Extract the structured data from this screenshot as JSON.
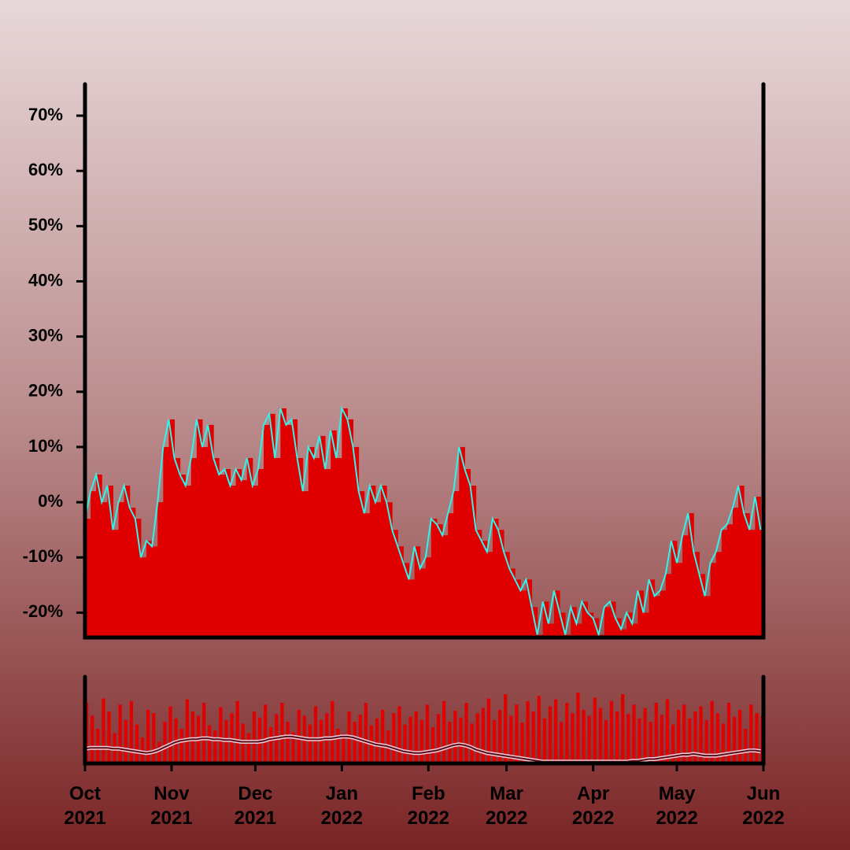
{
  "chart_data": [
    {
      "type": "area",
      "line_color": "#33f2ea",
      "color": "#e00000",
      "x": [
        0,
        2,
        4,
        6,
        8,
        10,
        12,
        14,
        16,
        18,
        20,
        22,
        24,
        26,
        28,
        30,
        32,
        34,
        36,
        38,
        40,
        42,
        44,
        46,
        48,
        50,
        52,
        54,
        56,
        58,
        60,
        62,
        64,
        66,
        68,
        70,
        72,
        74,
        76,
        78,
        80,
        82,
        84,
        86,
        88,
        90,
        92,
        94,
        96,
        98,
        100,
        102,
        104,
        106,
        108,
        110,
        112,
        114,
        116,
        118,
        120,
        122,
        124,
        126,
        128,
        130,
        132,
        134,
        136,
        138,
        140,
        142,
        144,
        146,
        148,
        150,
        152,
        154,
        156,
        158,
        160,
        162,
        164,
        166,
        168,
        170,
        172,
        174,
        176,
        178,
        180,
        182,
        184,
        186,
        188,
        190,
        192,
        194,
        196,
        198,
        200,
        202,
        204,
        206,
        208,
        210,
        212,
        214,
        216,
        218,
        220,
        222,
        224,
        226,
        228,
        230,
        232,
        234,
        236,
        238,
        240,
        242
      ],
      "values": [
        -3,
        2,
        5,
        0,
        3,
        -5,
        0,
        3,
        -1,
        -3,
        -10,
        -7,
        -8,
        0,
        10,
        15,
        8,
        5,
        3,
        8,
        15,
        10,
        14,
        8,
        5,
        6,
        3,
        6,
        4,
        8,
        3,
        6,
        14,
        16,
        8,
        17,
        14,
        15,
        8,
        2,
        10,
        8,
        12,
        6,
        13,
        8,
        17,
        15,
        10,
        2,
        -2,
        3,
        0,
        3,
        0,
        -5,
        -8,
        -11,
        -14,
        -8,
        -12,
        -10,
        -3,
        -4,
        -6,
        -2,
        2,
        10,
        6,
        3,
        -5,
        -7,
        -9,
        -3,
        -5,
        -9,
        -12,
        -14,
        -16,
        -14,
        -19,
        -24,
        -18,
        -22,
        -16,
        -20,
        -24,
        -19,
        -22,
        -18,
        -20,
        -21,
        -24,
        -19,
        -18,
        -21,
        -23,
        -20,
        -22,
        -16,
        -20,
        -14,
        -17,
        -16,
        -13,
        -7,
        -11,
        -6,
        -2,
        -9,
        -13,
        -17,
        -11,
        -9,
        -5,
        -4,
        -1,
        3,
        -2,
        -5,
        1,
        -5
      ],
      "xlim": [
        0,
        243
      ],
      "ylim": [
        -24.5,
        75.7
      ],
      "yticks": [
        {
          "value": -20,
          "label": "-20%"
        },
        {
          "value": -10,
          "label": "-10%"
        },
        {
          "value": 0,
          "label": "0%"
        },
        {
          "value": 10,
          "label": "10%"
        },
        {
          "value": 20,
          "label": "20%"
        },
        {
          "value": 30,
          "label": "30%"
        },
        {
          "value": 40,
          "label": "40%"
        },
        {
          "value": 50,
          "label": "50%"
        },
        {
          "value": 60,
          "label": "60%"
        },
        {
          "value": 70,
          "label": "70%"
        }
      ]
    },
    {
      "type": "bar",
      "color": "#e00000",
      "line_color": "#5a1010",
      "x": [
        0,
        2,
        4,
        6,
        8,
        10,
        12,
        14,
        16,
        18,
        20,
        22,
        24,
        26,
        28,
        30,
        32,
        34,
        36,
        38,
        40,
        42,
        44,
        46,
        48,
        50,
        52,
        54,
        56,
        58,
        60,
        62,
        64,
        66,
        68,
        70,
        72,
        74,
        76,
        78,
        80,
        82,
        84,
        86,
        88,
        90,
        92,
        94,
        96,
        98,
        100,
        102,
        104,
        106,
        108,
        110,
        112,
        114,
        116,
        118,
        120,
        122,
        124,
        126,
        128,
        130,
        132,
        134,
        136,
        138,
        140,
        142,
        144,
        146,
        148,
        150,
        152,
        154,
        156,
        158,
        160,
        162,
        164,
        166,
        168,
        170,
        172,
        174,
        176,
        178,
        180,
        182,
        184,
        186,
        188,
        190,
        192,
        194,
        196,
        198,
        200,
        202,
        204,
        206,
        208,
        210,
        212,
        214,
        216,
        218,
        220,
        222,
        224,
        226,
        228,
        230,
        232,
        234,
        236,
        238,
        240,
        242
      ],
      "values": [
        70,
        55,
        40,
        75,
        60,
        35,
        68,
        50,
        72,
        45,
        30,
        62,
        58,
        25,
        48,
        66,
        52,
        40,
        74,
        60,
        55,
        70,
        44,
        38,
        65,
        50,
        58,
        72,
        46,
        35,
        60,
        53,
        68,
        42,
        57,
        70,
        48,
        36,
        62,
        55,
        45,
        66,
        50,
        58,
        72,
        40,
        34,
        60,
        48,
        56,
        70,
        44,
        52,
        62,
        38,
        58,
        66,
        45,
        54,
        60,
        50,
        68,
        42,
        57,
        72,
        48,
        61,
        53,
        70,
        46,
        58,
        64,
        75,
        50,
        62,
        80,
        55,
        68,
        47,
        72,
        60,
        78,
        52,
        66,
        74,
        48,
        70,
        58,
        82,
        62,
        55,
        76,
        64,
        50,
        72,
        60,
        80,
        57,
        68,
        52,
        64,
        48,
        70,
        56,
        74,
        45,
        62,
        68,
        52,
        60,
        66,
        50,
        72,
        58,
        46,
        70,
        54,
        62,
        40,
        68,
        58,
        55
      ],
      "line_values": [
        17,
        18,
        18,
        18,
        18,
        17,
        17,
        16,
        15,
        14,
        13,
        12,
        13,
        15,
        18,
        21,
        24,
        26,
        27,
        28,
        28,
        29,
        29,
        28,
        28,
        27,
        27,
        26,
        25,
        25,
        25,
        25,
        26,
        28,
        29,
        30,
        31,
        31,
        30,
        29,
        28,
        28,
        28,
        29,
        29,
        30,
        31,
        31,
        30,
        28,
        26,
        24,
        22,
        21,
        20,
        18,
        16,
        14,
        13,
        12,
        12,
        13,
        14,
        15,
        17,
        19,
        21,
        22,
        21,
        19,
        16,
        14,
        12,
        11,
        10,
        9,
        8,
        7,
        6,
        5,
        4,
        3,
        2,
        2,
        2,
        2,
        2,
        2,
        2,
        2,
        2,
        2,
        2,
        2,
        2,
        2,
        2,
        2,
        3,
        3,
        4,
        5,
        5,
        6,
        7,
        8,
        9,
        10,
        10,
        11,
        10,
        9,
        9,
        9,
        10,
        11,
        12,
        13,
        14,
        15,
        15,
        14
      ],
      "xlim": [
        0,
        243
      ],
      "ylim": [
        0,
        100
      ],
      "xticks": [
        {
          "value": 0,
          "label": "Oct 2021"
        },
        {
          "value": 31,
          "label": "Nov 2021"
        },
        {
          "value": 61,
          "label": "Dec 2021"
        },
        {
          "value": 92,
          "label": "Jan 2022"
        },
        {
          "value": 123,
          "label": "Feb 2022"
        },
        {
          "value": 151,
          "label": "Mar 2022"
        },
        {
          "value": 182,
          "label": "Apr 2022"
        },
        {
          "value": 212,
          "label": "May 2022"
        },
        {
          "value": 243,
          "label": "Jun 2022"
        }
      ]
    }
  ]
}
